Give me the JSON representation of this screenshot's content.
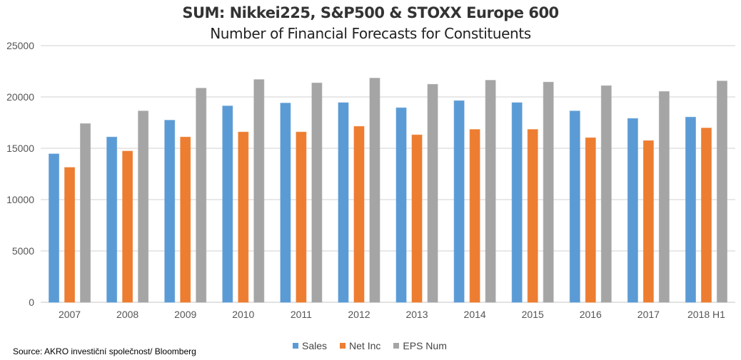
{
  "chart_data": {
    "type": "bar",
    "title": "SUM: Nikkei225, S&P500 & STOXX Europe 600",
    "subtitle": "Number of Financial Forecasts for Constituents",
    "xlabel": "",
    "ylabel": "",
    "ylim": [
      0,
      25000
    ],
    "yticks": [
      "0",
      "5000",
      "10000",
      "15000",
      "20000",
      "25000"
    ],
    "grid": true,
    "legend_position": "bottom",
    "categories": [
      "2007",
      "2008",
      "2009",
      "2010",
      "2011",
      "2012",
      "2013",
      "2014",
      "2015",
      "2016",
      "2017",
      "2018 H1"
    ],
    "series": [
      {
        "name": "Sales",
        "color": "#5B9BD5",
        "values": [
          14450,
          16090,
          17730,
          19120,
          19400,
          19440,
          18940,
          19630,
          19440,
          18630,
          17900,
          18030
        ]
      },
      {
        "name": "Net Inc",
        "color": "#ED7D31",
        "values": [
          13130,
          14720,
          16090,
          16580,
          16580,
          17130,
          16300,
          16830,
          16830,
          16020,
          15740,
          16970
        ]
      },
      {
        "name": "EPS Num",
        "color": "#A5A5A5",
        "values": [
          17400,
          18630,
          20850,
          21690,
          21360,
          21830,
          21230,
          21620,
          21440,
          21090,
          20530,
          21550
        ]
      }
    ]
  },
  "source": "Source: AKRO investiční společnost/ Bloomberg"
}
